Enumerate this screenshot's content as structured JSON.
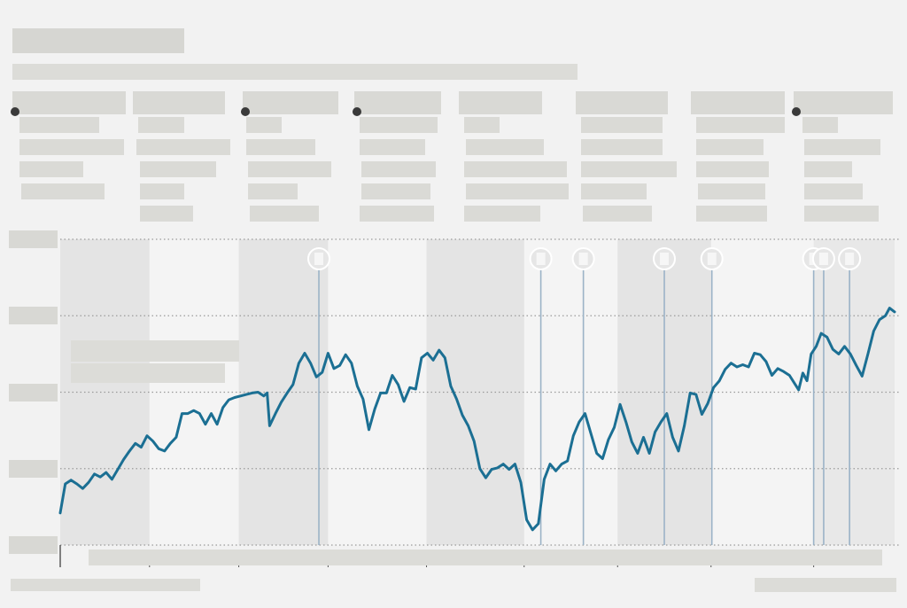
{
  "header": {
    "title": "",
    "subtitle": ""
  },
  "annotation_columns": [
    {
      "heading": "",
      "lines": [
        "",
        "",
        "",
        ""
      ]
    },
    {
      "heading": "",
      "lines": [
        "",
        "",
        "",
        "",
        ""
      ]
    },
    {
      "heading": "",
      "lines": [
        "",
        "",
        "",
        "",
        ""
      ]
    },
    {
      "heading": "",
      "lines": [
        "",
        "",
        "",
        "",
        ""
      ]
    },
    {
      "heading": "",
      "lines": [
        "",
        "",
        "",
        "",
        ""
      ]
    },
    {
      "heading": "",
      "lines": [
        "",
        "",
        "",
        "",
        ""
      ]
    },
    {
      "heading": "",
      "lines": [
        "",
        "",
        "",
        "",
        ""
      ]
    },
    {
      "heading": "",
      "lines": [
        "",
        "",
        "",
        "",
        ""
      ]
    }
  ],
  "footer": {
    "source": "",
    "credit": ""
  },
  "colors": {
    "line": "#1b6f93",
    "band": "#e4e4e4",
    "event_line": "#9bb3c7",
    "grid": "#9a9a9a",
    "background": "#f2f2f2"
  },
  "chart_data": {
    "type": "line",
    "title": "",
    "xlabel": "",
    "ylabel": "",
    "x_range": [
      0,
      100
    ],
    "ylim": [
      0,
      4
    ],
    "y_ticks": [
      0,
      1,
      2,
      3,
      4
    ],
    "y_tick_labels": [
      "",
      "",
      "",
      "",
      ""
    ],
    "x_tick_labels": [],
    "grid": true,
    "shaded_periods": [
      [
        0,
        10.7
      ],
      [
        21.4,
        32.1
      ],
      [
        43.9,
        55.6
      ],
      [
        66.8,
        78.0
      ]
    ],
    "events": [
      {
        "x": 31.0,
        "label": ""
      },
      {
        "x": 57.6,
        "label": ""
      },
      {
        "x": 62.7,
        "label": ""
      },
      {
        "x": 72.4,
        "label": ""
      },
      {
        "x": 78.1,
        "label": ""
      },
      {
        "x": 90.3,
        "label": ""
      },
      {
        "x": 91.5,
        "label": ""
      },
      {
        "x": 94.6,
        "label": ""
      }
    ],
    "series": [
      {
        "name": "",
        "values": [
          [
            0.0,
            0.42
          ],
          [
            0.6,
            0.8
          ],
          [
            1.3,
            0.85
          ],
          [
            2.0,
            0.8
          ],
          [
            2.7,
            0.74
          ],
          [
            3.4,
            0.82
          ],
          [
            4.1,
            0.93
          ],
          [
            4.8,
            0.89
          ],
          [
            5.5,
            0.95
          ],
          [
            6.2,
            0.86
          ],
          [
            6.9,
            0.99
          ],
          [
            7.6,
            1.12
          ],
          [
            8.3,
            1.23
          ],
          [
            9.0,
            1.33
          ],
          [
            9.7,
            1.28
          ],
          [
            10.4,
            1.43
          ],
          [
            11.1,
            1.36
          ],
          [
            11.8,
            1.26
          ],
          [
            12.5,
            1.23
          ],
          [
            13.2,
            1.33
          ],
          [
            13.9,
            1.41
          ],
          [
            14.6,
            1.72
          ],
          [
            15.3,
            1.72
          ],
          [
            16.0,
            1.76
          ],
          [
            16.7,
            1.72
          ],
          [
            17.4,
            1.58
          ],
          [
            18.1,
            1.72
          ],
          [
            18.8,
            1.58
          ],
          [
            19.5,
            1.8
          ],
          [
            20.2,
            1.9
          ],
          [
            20.9,
            1.93
          ],
          [
            21.6,
            1.95
          ],
          [
            22.3,
            1.97
          ],
          [
            23.0,
            1.99
          ],
          [
            23.7,
            2.0
          ],
          [
            24.4,
            1.95
          ],
          [
            24.8,
            1.99
          ],
          [
            25.1,
            1.56
          ],
          [
            25.8,
            1.72
          ],
          [
            26.5,
            1.87
          ],
          [
            27.2,
            1.99
          ],
          [
            27.9,
            2.1
          ],
          [
            28.6,
            2.38
          ],
          [
            29.3,
            2.51
          ],
          [
            30.0,
            2.38
          ],
          [
            30.7,
            2.2
          ],
          [
            31.4,
            2.26
          ],
          [
            32.1,
            2.51
          ],
          [
            32.8,
            2.31
          ],
          [
            33.5,
            2.35
          ],
          [
            34.2,
            2.49
          ],
          [
            34.9,
            2.38
          ],
          [
            35.6,
            2.08
          ],
          [
            36.3,
            1.91
          ],
          [
            37.0,
            1.51
          ],
          [
            37.7,
            1.78
          ],
          [
            38.4,
            1.99
          ],
          [
            39.1,
            1.99
          ],
          [
            39.8,
            2.22
          ],
          [
            40.5,
            2.1
          ],
          [
            41.2,
            1.88
          ],
          [
            41.9,
            2.06
          ],
          [
            42.6,
            2.04
          ],
          [
            43.3,
            2.45
          ],
          [
            44.0,
            2.51
          ],
          [
            44.7,
            2.42
          ],
          [
            45.4,
            2.55
          ],
          [
            46.1,
            2.45
          ],
          [
            46.8,
            2.08
          ],
          [
            47.5,
            1.91
          ],
          [
            48.2,
            1.7
          ],
          [
            48.9,
            1.56
          ],
          [
            49.6,
            1.36
          ],
          [
            50.3,
            1.0
          ],
          [
            51.0,
            0.88
          ],
          [
            51.7,
            0.99
          ],
          [
            52.4,
            1.01
          ],
          [
            53.1,
            1.06
          ],
          [
            53.8,
            0.99
          ],
          [
            54.5,
            1.06
          ],
          [
            55.2,
            0.82
          ],
          [
            55.9,
            0.33
          ],
          [
            56.6,
            0.2
          ],
          [
            57.3,
            0.28
          ],
          [
            58.0,
            0.86
          ],
          [
            58.7,
            1.06
          ],
          [
            59.4,
            0.97
          ],
          [
            60.1,
            1.06
          ],
          [
            60.8,
            1.1
          ],
          [
            61.5,
            1.43
          ],
          [
            62.2,
            1.61
          ],
          [
            62.9,
            1.72
          ],
          [
            63.6,
            1.46
          ],
          [
            64.3,
            1.2
          ],
          [
            65.0,
            1.13
          ],
          [
            65.7,
            1.38
          ],
          [
            66.4,
            1.54
          ],
          [
            67.1,
            1.84
          ],
          [
            67.8,
            1.61
          ],
          [
            68.5,
            1.35
          ],
          [
            69.2,
            1.2
          ],
          [
            69.9,
            1.41
          ],
          [
            70.6,
            1.2
          ],
          [
            71.3,
            1.48
          ],
          [
            72.0,
            1.61
          ],
          [
            72.7,
            1.72
          ],
          [
            73.4,
            1.41
          ],
          [
            74.1,
            1.23
          ],
          [
            74.8,
            1.56
          ],
          [
            75.5,
            1.99
          ],
          [
            76.2,
            1.97
          ],
          [
            76.9,
            1.71
          ],
          [
            77.6,
            1.85
          ],
          [
            78.3,
            2.06
          ],
          [
            79.0,
            2.15
          ],
          [
            79.7,
            2.3
          ],
          [
            80.4,
            2.38
          ],
          [
            81.1,
            2.33
          ],
          [
            81.8,
            2.36
          ],
          [
            82.5,
            2.33
          ],
          [
            83.2,
            2.51
          ],
          [
            83.9,
            2.49
          ],
          [
            84.6,
            2.4
          ],
          [
            85.3,
            2.22
          ],
          [
            86.0,
            2.31
          ],
          [
            86.7,
            2.27
          ],
          [
            87.4,
            2.22
          ],
          [
            88.1,
            2.1
          ],
          [
            88.5,
            2.03
          ],
          [
            89.0,
            2.25
          ],
          [
            89.5,
            2.15
          ],
          [
            90.0,
            2.5
          ],
          [
            90.6,
            2.6
          ],
          [
            91.2,
            2.77
          ],
          [
            91.9,
            2.72
          ],
          [
            92.6,
            2.56
          ],
          [
            93.3,
            2.5
          ],
          [
            94.0,
            2.6
          ],
          [
            94.7,
            2.5
          ],
          [
            95.4,
            2.35
          ],
          [
            96.1,
            2.21
          ],
          [
            96.8,
            2.5
          ],
          [
            97.5,
            2.8
          ],
          [
            98.2,
            2.95
          ],
          [
            98.9,
            3.0
          ],
          [
            99.4,
            3.1
          ],
          [
            100.0,
            3.05
          ]
        ]
      }
    ]
  }
}
